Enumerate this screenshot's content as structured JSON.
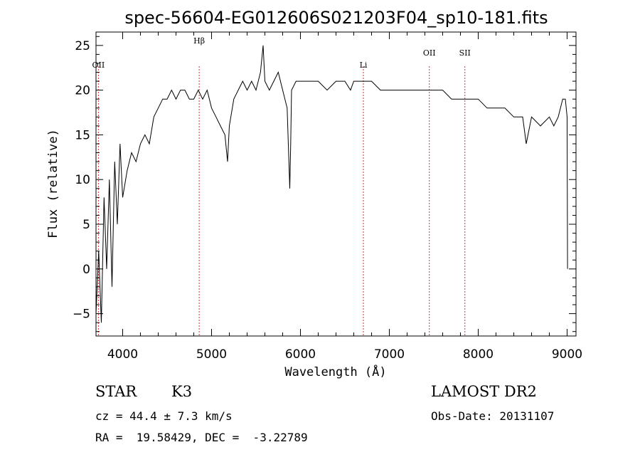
{
  "chart_data": {
    "type": "line",
    "title": "spec-56604-EG012606S021203F04_sp10-181.fits",
    "xlabel": "Wavelength (Å)",
    "ylabel": "Flux (relative)",
    "xlim": [
      3700,
      9100
    ],
    "ylim": [
      -7.5,
      26.5
    ],
    "x_ticks": [
      4000,
      5000,
      6000,
      7000,
      8000,
      9000
    ],
    "y_ticks": [
      -5,
      0,
      5,
      10,
      15,
      20,
      25
    ],
    "grid": false,
    "line_color": "#000000",
    "marker_color": "#cc3333",
    "series": [
      {
        "x": [
          3700,
          3730,
          3760,
          3790,
          3820,
          3850,
          3880,
          3910,
          3940,
          3970,
          4000,
          4050,
          4100,
          4150,
          4200,
          4250,
          4300,
          4350,
          4400,
          4450,
          4500,
          4550,
          4600,
          4650,
          4700,
          4750,
          4800,
          4850,
          4900,
          4950,
          5000,
          5050,
          5100,
          5150,
          5180,
          5200,
          5250,
          5300,
          5350,
          5400,
          5450,
          5500,
          5550,
          5580,
          5600,
          5650,
          5700,
          5750,
          5800,
          5850,
          5880,
          5890,
          5900,
          5950,
          6000,
          6100,
          6200,
          6300,
          6400,
          6500,
          6563,
          6600,
          6700,
          6800,
          6900,
          7000,
          7100,
          7200,
          7300,
          7400,
          7500,
          7600,
          7700,
          7800,
          7900,
          8000,
          8100,
          8200,
          8300,
          8400,
          8500,
          8540,
          8600,
          8700,
          8800,
          8850,
          8900,
          8950,
          8980,
          9000,
          9005
        ],
        "y": [
          -5,
          2,
          -6,
          8,
          0,
          10,
          -2,
          12,
          5,
          14,
          8,
          11,
          13,
          12,
          14,
          15,
          14,
          17,
          18,
          19,
          19,
          20,
          19,
          20,
          20,
          19,
          19,
          20,
          19,
          20,
          18,
          17,
          16,
          15,
          12,
          16,
          19,
          20,
          21,
          20,
          21,
          20,
          22,
          25,
          21,
          20,
          21,
          22,
          20,
          18,
          9,
          14,
          20,
          21,
          21,
          21,
          21,
          20,
          21,
          21,
          20,
          21,
          21,
          21,
          20,
          20,
          20,
          20,
          20,
          20,
          20,
          20,
          19,
          19,
          19,
          19,
          18,
          18,
          18,
          17,
          17,
          14,
          17,
          16,
          17,
          16,
          17,
          19,
          19,
          17,
          0
        ]
      }
    ],
    "line_markers": [
      {
        "label": "OII",
        "x": 3727
      },
      {
        "label": "Hβ",
        "x": 4861
      },
      {
        "label": "Li",
        "x": 6708
      },
      {
        "label": "OII",
        "x": 7450
      },
      {
        "label": "SII",
        "x": 7850
      }
    ]
  },
  "info": {
    "object_class": "STAR",
    "subclass": "K3",
    "survey": "LAMOST DR2",
    "redshift_line": "cz = 44.4 ± 7.3 km/s",
    "obs_date": "Obs-Date: 20131107",
    "coords": "RA =  19.58429, DEC =  -3.22789"
  }
}
